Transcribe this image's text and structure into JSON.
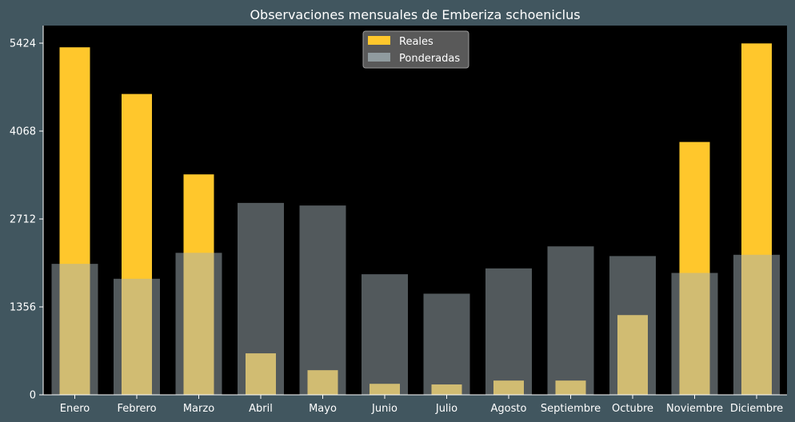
{
  "chart_data": {
    "type": "bar",
    "title": "Observaciones mensuales de Emberiza schoeniclus",
    "xlabel": "",
    "ylabel": "",
    "categories": [
      "Enero",
      "Febrero",
      "Marzo",
      "Abril",
      "Mayo",
      "Junio",
      "Julio",
      "Agosto",
      "Septiembre",
      "Octubre",
      "Noviembre",
      "Diciembre"
    ],
    "series": [
      {
        "name": "Reales",
        "color": "#ffc72c",
        "values": [
          5360,
          4640,
          3400,
          640,
          380,
          170,
          160,
          220,
          220,
          1230,
          3900,
          5420
        ]
      },
      {
        "name": "Ponderadas",
        "color": "#a3b1b7",
        "values": [
          2020,
          1790,
          2190,
          2960,
          2920,
          1860,
          1560,
          1950,
          2290,
          2140,
          1880,
          2160
        ]
      }
    ],
    "yticks": [
      0,
      1356,
      2712,
      4068,
      5424
    ],
    "ylim": [
      0,
      5424
    ],
    "legend": "top-center",
    "grid": false,
    "colors": {
      "figure_bg": "#41565f",
      "plot_bg": "#000000",
      "legend_bg": "#595959",
      "text": "#ffffff"
    }
  }
}
